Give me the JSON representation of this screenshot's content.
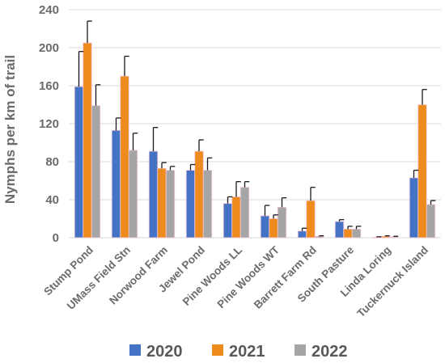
{
  "chart_data": {
    "type": "bar",
    "ylabel": "Nymphs per km of trail",
    "ylim": [
      0,
      240
    ],
    "yticks": [
      0,
      40,
      80,
      120,
      160,
      200,
      240
    ],
    "grid": true,
    "legend_position": "bottom",
    "categories": [
      "Stump Pond",
      "UMass Field Stn",
      "Norwood Farm",
      "Jewel Pond",
      "Pine Woods LL",
      "Pine Woods WT",
      "Barrett Farm Rd",
      "South Pasture",
      "Linda Loring",
      "Tuckernuck Island"
    ],
    "series": [
      {
        "name": "2020",
        "color": "#4472c4",
        "values": [
          159,
          113,
          91,
          71,
          36,
          23,
          7,
          17,
          0.5,
          63
        ],
        "error_upper": [
          196,
          126,
          116,
          77,
          43,
          34,
          10,
          19,
          1,
          71
        ]
      },
      {
        "name": "2021",
        "color": "#ed8b1f",
        "values": [
          205,
          170,
          73,
          91,
          43,
          20,
          39,
          9,
          1.5,
          140
        ],
        "error_upper": [
          228,
          191,
          79,
          103,
          59,
          24,
          53,
          12,
          2,
          156
        ]
      },
      {
        "name": "2022",
        "color": "#a5a5a5",
        "values": [
          139,
          92,
          71,
          71,
          53,
          32,
          1.5,
          9,
          1,
          35
        ],
        "error_upper": [
          161,
          110,
          75,
          84,
          59,
          42,
          2,
          12,
          1.5,
          39
        ]
      }
    ]
  }
}
